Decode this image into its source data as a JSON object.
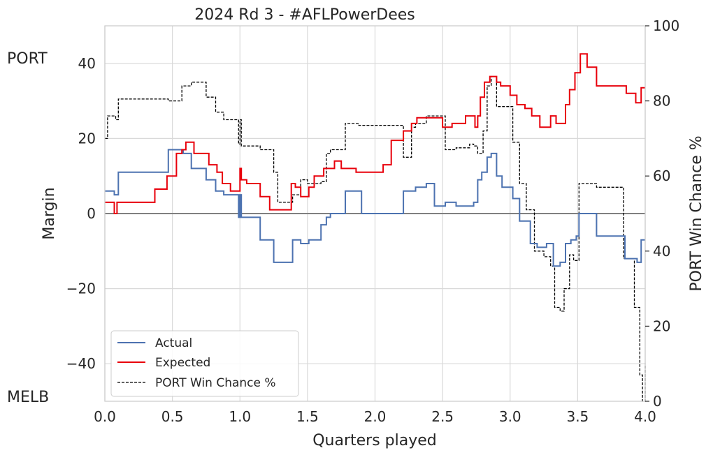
{
  "chart_data": {
    "type": "line",
    "title": "2024 Rd 3 - #AFLPowerDees",
    "xlabel": "Quarters played",
    "ylabel": "Margin",
    "y2label": "PORT Win Chance %",
    "team_top": "PORT",
    "team_bottom": "MELB",
    "xlim": [
      0,
      4
    ],
    "ylim": [
      -50,
      50
    ],
    "y2lim": [
      0,
      100
    ],
    "xticks": [
      "0.0",
      "0.5",
      "1.0",
      "1.5",
      "2.0",
      "2.5",
      "3.0",
      "3.5",
      "4.0"
    ],
    "yticks": [
      "−40",
      "−20",
      "0",
      "20",
      "40"
    ],
    "y2ticks": [
      "0",
      "20",
      "40",
      "60",
      "80",
      "100"
    ],
    "grid": true,
    "legend_position": "lower-left",
    "series": [
      {
        "name": "Actual",
        "color": "#4c72b0",
        "axis": "left",
        "style": "step",
        "x": [
          0,
          0.07,
          0.1,
          0.47,
          0.58,
          0.64,
          0.75,
          0.82,
          0.88,
          0.99,
          1.0,
          1.01,
          1.15,
          1.25,
          1.39,
          1.42,
          1.45,
          1.51,
          1.6,
          1.64,
          1.67,
          1.78,
          1.9,
          2.21,
          2.27,
          2.3,
          2.32,
          2.38,
          2.44,
          2.52,
          2.6,
          2.7,
          2.73,
          2.76,
          2.79,
          2.83,
          2.86,
          2.9,
          2.94,
          3.02,
          3.07,
          3.15,
          3.17,
          3.2,
          3.27,
          3.32,
          3.37,
          3.41,
          3.45,
          3.49,
          3.51,
          3.64,
          3.85,
          3.9,
          3.94,
          3.97,
          4.0
        ],
        "values": [
          6,
          5,
          11,
          17,
          16,
          12,
          9,
          6,
          5,
          -1,
          5,
          -1,
          -7,
          -13,
          -7,
          -7,
          -8,
          -7,
          -3,
          -1,
          0,
          6,
          0,
          6,
          6,
          7,
          7,
          8,
          2,
          3,
          2,
          2,
          3,
          9,
          11,
          15,
          16,
          10,
          7,
          4,
          -2,
          -8,
          -8,
          -9,
          -8,
          -14,
          -13,
          -8,
          -7,
          -6,
          0,
          -6,
          -12,
          -12,
          -13,
          -7,
          -7
        ]
      },
      {
        "name": "Expected",
        "color": "#e8000b",
        "axis": "left",
        "style": "step",
        "x": [
          0,
          0.07,
          0.09,
          0.37,
          0.46,
          0.53,
          0.57,
          0.6,
          0.66,
          0.77,
          0.83,
          0.87,
          0.93,
          1.0,
          1.01,
          1.05,
          1.15,
          1.22,
          1.38,
          1.41,
          1.45,
          1.51,
          1.55,
          1.62,
          1.7,
          1.75,
          1.86,
          2.06,
          2.12,
          2.21,
          2.27,
          2.31,
          2.41,
          2.5,
          2.57,
          2.67,
          2.74,
          2.76,
          2.78,
          2.81,
          2.85,
          2.9,
          2.93,
          2.96,
          3.0,
          3.05,
          3.11,
          3.16,
          3.22,
          3.3,
          3.34,
          3.41,
          3.44,
          3.48,
          3.52,
          3.57,
          3.64,
          3.86,
          3.93,
          3.97,
          4.0
        ],
        "values": [
          3,
          0,
          3,
          6.5,
          10,
          16,
          17,
          19,
          16,
          13,
          11,
          8,
          6,
          12,
          9,
          8,
          4.5,
          1,
          8,
          7,
          4.5,
          7,
          10,
          12,
          14,
          12,
          11,
          13,
          19.5,
          22,
          24,
          25.5,
          25.5,
          23,
          24,
          26,
          23,
          26,
          31,
          35,
          36.5,
          35,
          34,
          34,
          31.5,
          29,
          28,
          26,
          23,
          26,
          24,
          29,
          33,
          37.5,
          42.5,
          39,
          34,
          32,
          29.5,
          33.5,
          33.5
        ]
      },
      {
        "name": "PORT Win Chance %",
        "color": "#000000",
        "axis": "right",
        "style": "dashed-step",
        "x": [
          0,
          0.02,
          0.08,
          0.1,
          0.47,
          0.57,
          0.64,
          0.75,
          0.82,
          0.88,
          0.99,
          1.0,
          1.01,
          1.15,
          1.25,
          1.28,
          1.39,
          1.42,
          1.45,
          1.5,
          1.6,
          1.64,
          1.67,
          1.78,
          1.88,
          2.21,
          2.27,
          2.3,
          2.32,
          2.38,
          2.44,
          2.52,
          2.6,
          2.7,
          2.73,
          2.76,
          2.8,
          2.83,
          2.86,
          2.9,
          2.94,
          3.02,
          3.07,
          3.12,
          3.18,
          3.25,
          3.3,
          3.33,
          3.37,
          3.4,
          3.44,
          3.47,
          3.51,
          3.64,
          3.84,
          3.92,
          3.96,
          3.98,
          4.0
        ],
        "values": [
          70,
          76,
          75,
          80.5,
          80,
          84,
          85,
          81,
          77,
          75,
          68.5,
          75,
          68,
          67,
          61,
          53,
          55,
          55,
          59,
          58,
          58.5,
          66,
          67,
          74,
          73.5,
          65,
          73,
          74,
          74,
          76,
          76,
          67,
          67.5,
          68.5,
          68,
          66,
          72,
          84,
          86.5,
          78.5,
          78.5,
          69,
          58,
          51,
          40,
          38.5,
          36,
          25,
          24,
          30,
          39,
          37.5,
          58,
          57,
          38,
          25,
          7,
          0,
          10
        ]
      }
    ]
  }
}
